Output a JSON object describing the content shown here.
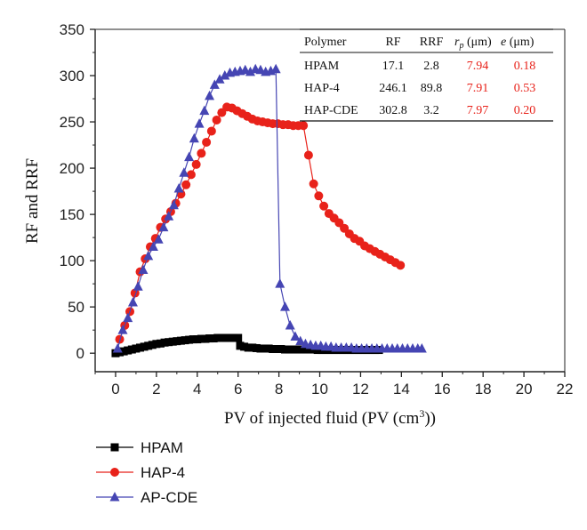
{
  "chart_data": {
    "type": "line",
    "title": "",
    "xlabel": "PV of injected fluid (PV (cm",
    "xlabel_sup": "3",
    "xlabel_tail": "))",
    "ylabel": "RF and RRF",
    "xlim": [
      -1,
      22
    ],
    "ylim": [
      -20,
      350
    ],
    "xticks": [
      0,
      2,
      4,
      6,
      8,
      10,
      12,
      14,
      16,
      18,
      20,
      22
    ],
    "yticks": [
      0,
      50,
      100,
      150,
      200,
      250,
      300,
      350
    ],
    "grid": false,
    "legend_position": "bottom-left",
    "series": [
      {
        "name": "HPAM",
        "color": "#000000",
        "marker": "square",
        "x": [
          0,
          0.2,
          0.4,
          0.6,
          0.8,
          1.0,
          1.2,
          1.4,
          1.6,
          1.8,
          2.0,
          2.2,
          2.4,
          2.6,
          2.8,
          3.0,
          3.2,
          3.4,
          3.6,
          3.8,
          4.0,
          4.2,
          4.4,
          4.6,
          4.8,
          5.0,
          5.2,
          5.4,
          5.6,
          5.8,
          6.0,
          6.1,
          6.3,
          6.5,
          6.7,
          6.9,
          7.1,
          7.3,
          7.5,
          7.7,
          7.9,
          8.1,
          8.3,
          8.5,
          8.7,
          8.9,
          9.1,
          9.3,
          9.5,
          9.7,
          9.9,
          10.1,
          10.3,
          10.5,
          10.7,
          10.9,
          11.1,
          11.3,
          11.5,
          11.7,
          11.9,
          12.1,
          12.3,
          12.5,
          12.7,
          12.9
        ],
        "values": [
          0,
          1,
          2,
          3,
          4,
          5,
          6,
          7,
          8,
          9,
          10,
          10.5,
          11.5,
          12,
          12.5,
          13,
          13.5,
          14,
          14.5,
          15,
          15,
          15.5,
          15.5,
          16,
          16,
          16.5,
          16.5,
          16.5,
          16.5,
          16.5,
          16.5,
          8,
          7,
          6,
          6,
          5.5,
          5,
          5,
          5,
          4.5,
          4.5,
          4.5,
          4,
          4,
          4,
          4,
          4,
          4,
          4,
          4,
          3.5,
          3.5,
          3.5,
          3.5,
          3.5,
          3.5,
          3.5,
          3.5,
          3.5,
          3.5,
          3.5,
          3.5,
          3.5,
          3.5,
          3.5,
          3.5
        ]
      },
      {
        "name": "HAP-4",
        "color": "#e8221a",
        "marker": "circle",
        "x": [
          0.2,
          0.45,
          0.7,
          0.95,
          1.2,
          1.45,
          1.7,
          1.95,
          2.2,
          2.45,
          2.7,
          2.95,
          3.2,
          3.45,
          3.7,
          3.95,
          4.2,
          4.45,
          4.7,
          4.95,
          5.2,
          5.45,
          5.7,
          5.95,
          6.2,
          6.45,
          6.7,
          6.95,
          7.2,
          7.45,
          7.7,
          7.95,
          8.2,
          8.45,
          8.7,
          8.95,
          9.2,
          9.45,
          9.7,
          9.95,
          10.2,
          10.45,
          10.7,
          10.95,
          11.2,
          11.45,
          11.7,
          11.95,
          12.2,
          12.45,
          12.7,
          12.95,
          13.2,
          13.45,
          13.7,
          13.95
        ],
        "values": [
          15,
          30,
          45,
          65,
          88,
          102,
          115,
          124,
          136,
          145,
          153,
          162,
          172,
          182,
          193,
          204,
          216,
          228,
          240,
          252,
          260,
          266,
          265,
          262,
          259,
          256,
          253,
          251,
          250,
          249,
          248,
          248,
          247,
          247,
          246,
          246,
          246,
          214,
          183,
          170,
          159,
          151,
          146,
          141,
          135,
          129,
          124,
          121,
          116,
          113,
          110,
          107,
          104,
          101,
          98,
          95
        ]
      },
      {
        "name": "AP-CDE",
        "color": "#4545b3",
        "marker": "triangle",
        "x": [
          0.1,
          0.35,
          0.6,
          0.85,
          1.1,
          1.35,
          1.6,
          1.85,
          2.1,
          2.35,
          2.6,
          2.85,
          3.1,
          3.35,
          3.6,
          3.85,
          4.1,
          4.35,
          4.6,
          4.85,
          5.1,
          5.35,
          5.6,
          5.85,
          6.1,
          6.35,
          6.6,
          6.85,
          7.1,
          7.35,
          7.6,
          7.85,
          8.05,
          8.3,
          8.55,
          8.8,
          9.05,
          9.3,
          9.55,
          9.8,
          10.05,
          10.3,
          10.55,
          10.8,
          11.05,
          11.3,
          11.55,
          11.8,
          12.05,
          12.3,
          12.55,
          12.8,
          13.05,
          13.3,
          13.55,
          13.8,
          14.05,
          14.3,
          14.55,
          14.8,
          15.0
        ],
        "values": [
          5,
          25,
          38,
          55,
          72,
          90,
          105,
          115,
          123,
          136,
          148,
          160,
          178,
          195,
          212,
          232,
          248,
          262,
          278,
          290,
          296,
          300,
          303,
          304,
          305,
          306,
          304,
          307,
          306,
          304,
          305,
          307,
          75,
          50,
          30,
          18,
          13,
          10,
          9,
          8,
          8,
          7,
          7,
          6,
          6,
          6,
          6,
          5,
          5,
          5,
          5,
          5,
          5,
          5,
          5,
          5,
          5,
          5,
          5,
          5,
          5
        ]
      }
    ],
    "table": {
      "headers": [
        "Polymer",
        "RF",
        "RRF",
        "r",
        "p",
        " (μm)",
        "e",
        " (μm)"
      ],
      "rows": [
        [
          "HPAM",
          "17.1",
          "2.8",
          "7.94",
          "0.18"
        ],
        [
          "HAP-4",
          "246.1",
          "89.8",
          "7.91",
          "0.53"
        ],
        [
          "HAP-CDE",
          "302.8",
          "3.2",
          "7.97",
          "0.20"
        ]
      ]
    }
  }
}
